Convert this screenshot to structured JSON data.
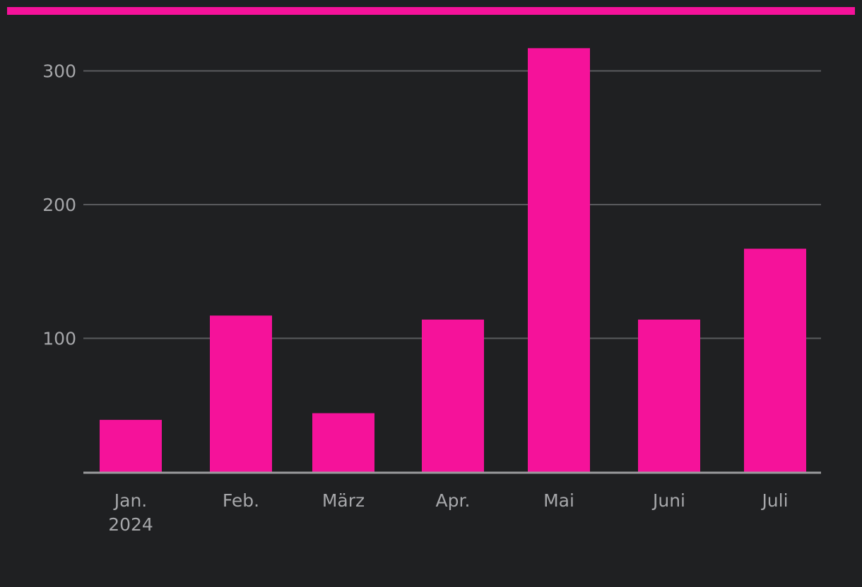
{
  "colors": {
    "background": "#1f2022",
    "accent": "#f5129a",
    "bar": "#f5129a",
    "grid": "#5a5b5e",
    "axis": "#9a9b9d",
    "text": "#a6a7aa"
  },
  "chart_data": {
    "type": "bar",
    "categories": [
      "Jan.",
      "Feb.",
      "März",
      "Apr.",
      "Mai",
      "Juni",
      "Juli"
    ],
    "category_sublabels": [
      "2024",
      "",
      "",
      "",
      "",
      "",
      ""
    ],
    "values": [
      39,
      117,
      44,
      114,
      317,
      114,
      167
    ],
    "ylim": [
      0,
      335
    ],
    "yticks": [
      100,
      200,
      300
    ],
    "grid": true,
    "legend": "none"
  }
}
